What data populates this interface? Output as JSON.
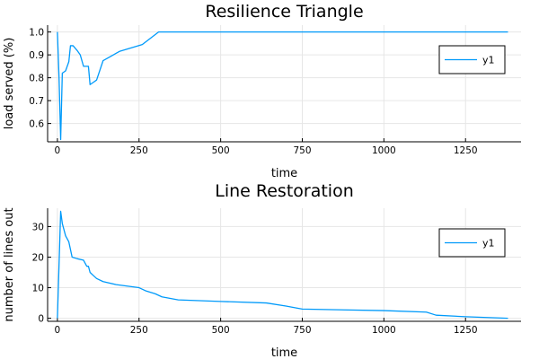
{
  "colors": {
    "series": "#009AFA"
  },
  "chart_data": [
    {
      "type": "line",
      "title": "Resilience Triangle",
      "xlabel": "time",
      "ylabel": "load served (%)",
      "xlim": [
        -30,
        1420
      ],
      "ylim": [
        0.52,
        1.03
      ],
      "xticks": [
        0,
        250,
        500,
        750,
        1000,
        1250
      ],
      "xtick_labels": [
        "0",
        "250",
        "500",
        "750",
        "1000",
        "1250"
      ],
      "yticks": [
        0.6,
        0.7,
        0.8,
        0.9,
        1.0
      ],
      "ytick_labels": [
        "0.6",
        "0.7",
        "0.8",
        "0.9",
        "1.0"
      ],
      "grid": true,
      "legend_position": "top-right",
      "series": [
        {
          "name": "y1",
          "x": [
            0,
            5,
            10,
            15,
            25,
            35,
            40,
            48,
            60,
            70,
            80,
            88,
            95,
            100,
            110,
            120,
            140,
            190,
            260,
            310,
            1380
          ],
          "y": [
            1.0,
            0.8,
            0.53,
            0.82,
            0.83,
            0.87,
            0.94,
            0.94,
            0.92,
            0.9,
            0.85,
            0.85,
            0.85,
            0.77,
            0.78,
            0.79,
            0.875,
            0.915,
            0.945,
            1.0,
            1.0
          ]
        }
      ]
    },
    {
      "type": "line",
      "title": "Line Restoration",
      "xlabel": "time",
      "ylabel": "number of lines out",
      "xlim": [
        -30,
        1420
      ],
      "ylim": [
        -1,
        36
      ],
      "xticks": [
        0,
        250,
        500,
        750,
        1000,
        1250
      ],
      "xtick_labels": [
        "0",
        "250",
        "500",
        "750",
        "1000",
        "1250"
      ],
      "yticks": [
        0,
        10,
        20,
        30
      ],
      "ytick_labels": [
        "0",
        "10",
        "20",
        "30"
      ],
      "grid": true,
      "legend_position": "top-right",
      "series": [
        {
          "name": "y1",
          "x": [
            0,
            10,
            15,
            25,
            35,
            45,
            60,
            80,
            90,
            95,
            100,
            110,
            120,
            140,
            180,
            250,
            270,
            300,
            320,
            370,
            500,
            640,
            700,
            750,
            1000,
            1130,
            1160,
            1250,
            1380
          ],
          "y": [
            0,
            35,
            31,
            27,
            25,
            20,
            19.5,
            19,
            17,
            17,
            15,
            14,
            13,
            12,
            11,
            10,
            9,
            8,
            7,
            6,
            5.5,
            5,
            4,
            3,
            2.5,
            2,
            1,
            0.5,
            0
          ]
        }
      ]
    }
  ]
}
